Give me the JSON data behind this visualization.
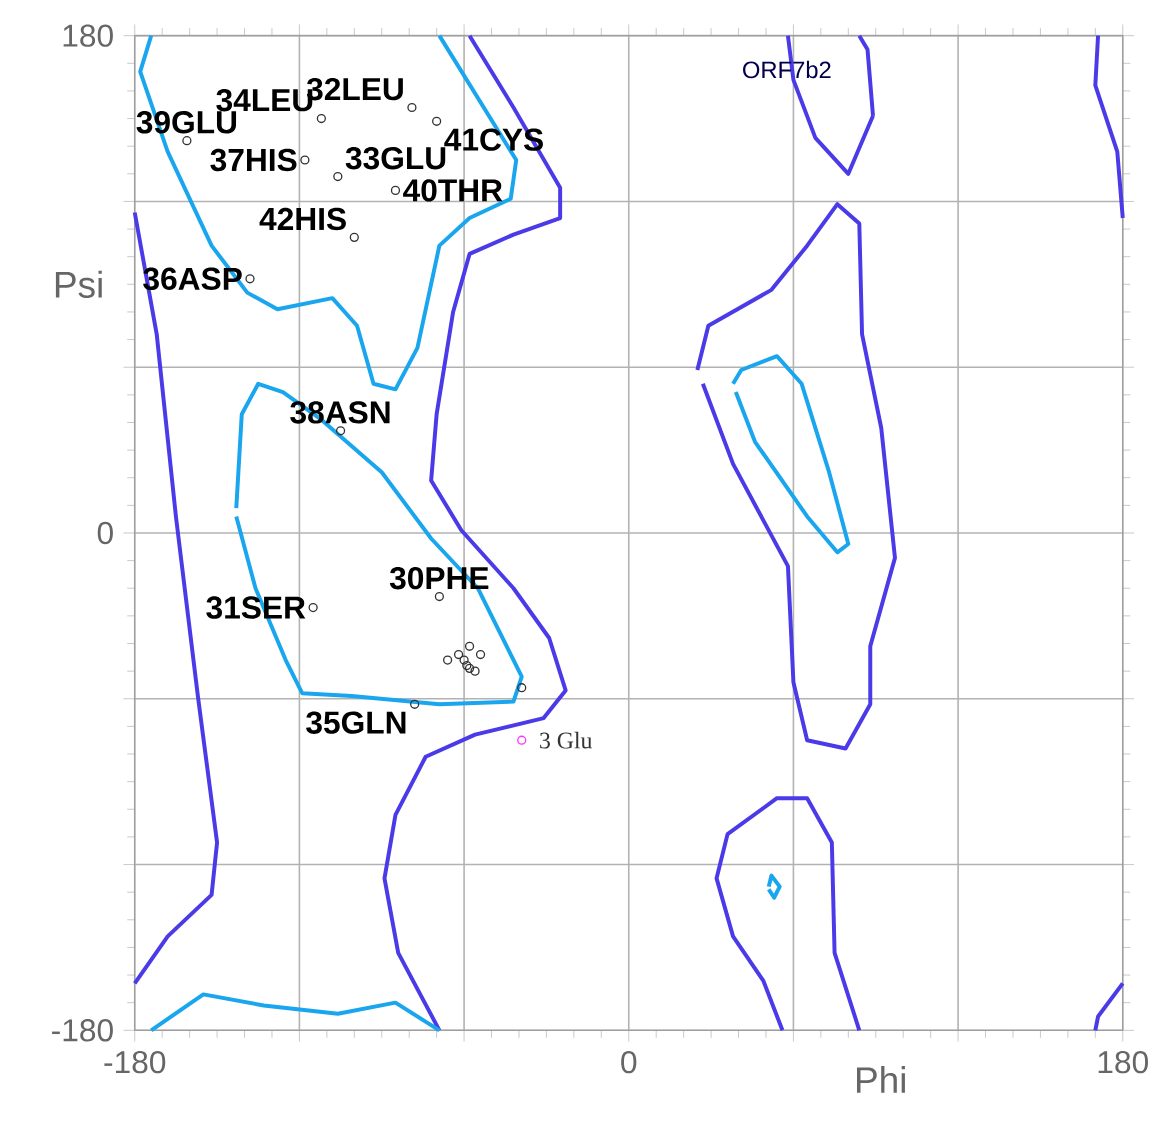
{
  "chart_data": {
    "type": "scatter",
    "title": "ORF7b2",
    "xlabel": "Phi",
    "ylabel": "Psi",
    "xlim": [
      -180,
      180
    ],
    "ylim": [
      -180,
      180
    ],
    "xticks": [
      -180,
      {
        "value": -120,
        "label": null
      },
      {
        "value": -60,
        "label": null
      },
      0,
      {
        "value": 60,
        "label": null
      },
      {
        "value": 120,
        "label": null
      },
      180
    ],
    "yticks": [
      -180,
      {
        "value": -120,
        "label": null
      },
      {
        "value": -60,
        "label": null
      },
      0,
      {
        "value": 60,
        "label": null
      },
      {
        "value": 120,
        "label": null
      },
      180
    ],
    "grid": true,
    "marker": "circle",
    "series": [
      {
        "type": "line",
        "marker": "none",
        "color": "#4a3ae8",
        "x": [
          -58,
          -42,
          -25,
          -25,
          -42,
          -58,
          -64,
          -70,
          -72,
          -61,
          -42,
          -29,
          -23,
          -31,
          -56,
          -74,
          -85,
          -89,
          -84,
          -69
        ],
        "values": [
          180,
          154,
          125,
          114,
          108,
          101,
          80,
          43,
          19,
          1,
          -20,
          -38,
          -57,
          -67,
          -73,
          -81,
          -102,
          -125,
          -152,
          -180
        ]
      },
      {
        "type": "line",
        "marker": "none",
        "color": "#4a3ae8",
        "x": [
          -180,
          -172,
          -165,
          -157,
          -150,
          -152,
          -168,
          -180
        ],
        "values": [
          116,
          72,
          6,
          -59,
          -112,
          -131,
          -146,
          -163
        ]
      },
      {
        "type": "line",
        "marker": "none",
        "color": "#1aa6ee",
        "x": [
          -174,
          -178,
          -168,
          -152,
          -139,
          -128,
          -108,
          -99,
          -93,
          -85,
          -77,
          -69,
          -58,
          -43,
          -41,
          -69
        ],
        "values": [
          180,
          167,
          138,
          104,
          87,
          81,
          85,
          75,
          54,
          52,
          67,
          104,
          114,
          121,
          135,
          180
        ]
      },
      {
        "type": "line",
        "marker": "none",
        "color": "#1aa6ee",
        "x": [
          -143,
          -136,
          -125,
          -119,
          -101,
          -69,
          -42,
          -39,
          -55,
          -72,
          -90,
          -112,
          -126,
          -135,
          -141,
          -143
        ],
        "values": [
          6,
          -20,
          -46,
          -58,
          -59,
          -62,
          -61,
          -52,
          -20,
          -2,
          22,
          41,
          51,
          54,
          43,
          9
        ]
      },
      {
        "type": "line",
        "marker": "none",
        "color": "#1aa6ee",
        "x": [
          -174,
          -155,
          -133,
          -106,
          -85,
          -69
        ],
        "values": [
          -180,
          -167,
          -171,
          -174,
          -170,
          -180
        ]
      },
      {
        "type": "line",
        "marker": "none",
        "color": "#4a3ae8",
        "x": [
          25,
          29,
          52,
          65,
          76,
          84,
          85,
          92,
          97,
          88,
          88,
          79,
          65,
          60,
          58,
          38,
          27
        ],
        "values": [
          59,
          75,
          88,
          104,
          119,
          112,
          72,
          38,
          -9,
          -41,
          -62,
          -78,
          -75,
          -54,
          -12,
          25,
          54
        ]
      },
      {
        "type": "line",
        "marker": "none",
        "color": "#1aa6ee",
        "x": [
          38,
          41,
          54,
          63,
          73,
          80,
          76,
          65,
          46,
          39
        ],
        "values": [
          54,
          59,
          64,
          54,
          22,
          -4,
          -7,
          6,
          33,
          51
        ]
      },
      {
        "type": "line",
        "marker": "none",
        "color": "#4a3ae8",
        "x": [
          58,
          60,
          68,
          80,
          89
        ],
        "values": [
          180,
          164,
          143,
          130,
          151
        ]
      },
      {
        "type": "line",
        "marker": "none",
        "color": "#4a3ae8",
        "x": [
          84,
          87,
          89
        ],
        "values": [
          180,
          175,
          151
        ]
      },
      {
        "type": "line",
        "marker": "none",
        "color": "#4a3ae8",
        "x": [
          171,
          170,
          178,
          180
        ],
        "values": [
          180,
          162,
          138,
          114
        ]
      },
      {
        "type": "line",
        "marker": "none",
        "color": "#4a3ae8",
        "x": [
          180,
          171,
          170
        ],
        "values": [
          -163,
          -175,
          -180
        ]
      },
      {
        "type": "line",
        "marker": "none",
        "color": "#4a3ae8",
        "x": [
          84,
          75,
          74,
          65,
          54,
          36,
          32,
          38,
          49,
          56
        ],
        "values": [
          -180,
          -152,
          -112,
          -96,
          -96,
          -109,
          -125,
          -146,
          -162,
          -180
        ]
      },
      {
        "type": "line",
        "marker": "none",
        "color": "#1aa6ee",
        "x": [
          51,
          52,
          55,
          53,
          51
        ],
        "values": [
          -128,
          -124,
          -128,
          -132,
          -129
        ]
      },
      {
        "color": "#333333",
        "x": [
          -161,
          -112,
          -79,
          -70,
          -118,
          -106,
          -85,
          -100,
          -138,
          -105,
          -115,
          -69,
          -78,
          -39,
          -66,
          -62,
          -58,
          -54,
          -60,
          -58,
          -56,
          -59
        ],
        "values": [
          142,
          150,
          154,
          149,
          135,
          129,
          124,
          107,
          92,
          37,
          -27,
          -23,
          -62,
          -56,
          -46,
          -44,
          -41,
          -44,
          -46,
          -49,
          -50,
          -48
        ]
      },
      {
        "name": "3 Glu",
        "color": "#ff33ff",
        "x": [
          -39
        ],
        "values": [
          -75
        ]
      }
    ],
    "annotations": [
      {
        "text": "39GLU",
        "x": -161,
        "y": 142
      },
      {
        "text": "34LEU",
        "x": -112,
        "y": 150
      },
      {
        "text": "32LEU",
        "x": -79,
        "y": 154
      },
      {
        "text": "41CYS",
        "x": -70,
        "y": 149
      },
      {
        "text": "37HIS",
        "x": -118,
        "y": 135
      },
      {
        "text": "33GLU",
        "x": -106,
        "y": 129
      },
      {
        "text": "40THR",
        "x": -85,
        "y": 124
      },
      {
        "text": "42HIS",
        "x": -100,
        "y": 107
      },
      {
        "text": "36ASP",
        "x": -138,
        "y": 92
      },
      {
        "text": "38ASN",
        "x": -105,
        "y": 37
      },
      {
        "text": "31SER",
        "x": -115,
        "y": -27
      },
      {
        "text": "30PHE",
        "x": -69,
        "y": -23
      },
      {
        "text": "35GLN",
        "x": -78,
        "y": -62
      }
    ]
  }
}
